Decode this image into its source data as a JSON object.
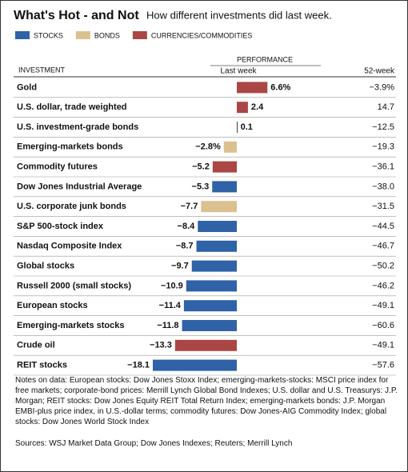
{
  "chart_data": {
    "type": "bar",
    "orientation": "horizontal",
    "title": "What's Hot - and Not",
    "subtitle": "How different investments did last week.",
    "category_header": "INVESTMENT",
    "group_header": "PERFORMANCE",
    "value_header": "Last week",
    "categories": [
      "Gold",
      "U.S. dollar, trade weighted",
      "U.S. investment-grade bonds",
      "Emerging-markets bonds",
      "Commodity futures",
      "Dow Jones Industrial Average",
      "U.S. corporate junk bonds",
      "S&P 500-stock index",
      "Nasdaq Composite Index",
      "Global stocks",
      "Russell 2000 (small stocks)",
      "European stocks",
      "Emerging-markets stocks",
      "Crude oil",
      "REIT stocks"
    ],
    "series": [
      {
        "name": "STOCKS",
        "color": "#2f62a6",
        "values": [
          null,
          null,
          null,
          null,
          null,
          -5.3,
          null,
          -8.4,
          -8.7,
          -9.7,
          -10.9,
          -11.4,
          -11.8,
          null,
          -18.1
        ],
        "value_labels": [
          null,
          null,
          null,
          null,
          null,
          "−5.3",
          null,
          "−8.4",
          "−8.7",
          "−9.7",
          "−10.9",
          "−11.4",
          "−11.8",
          null,
          "−18.1"
        ]
      },
      {
        "name": "BONDS",
        "color": "#dcc190",
        "values": [
          null,
          null,
          0.1,
          -2.8,
          null,
          null,
          -7.7,
          null,
          null,
          null,
          null,
          null,
          null,
          null,
          null
        ],
        "value_labels": [
          null,
          null,
          "0.1",
          "−2.8%",
          null,
          null,
          "−7.7",
          null,
          null,
          null,
          null,
          null,
          null,
          null,
          null
        ]
      },
      {
        "name": "CURRENCIES/COMMODITIES",
        "color": "#ab4646",
        "values": [
          6.6,
          2.4,
          null,
          null,
          -5.2,
          null,
          null,
          null,
          null,
          null,
          null,
          null,
          null,
          -13.3,
          null
        ],
        "value_labels": [
          "6.6%",
          "2.4",
          null,
          null,
          "−5.2",
          null,
          null,
          null,
          null,
          null,
          null,
          null,
          null,
          "−13.3",
          null
        ]
      }
    ],
    "week52": {
      "header": "52-week",
      "values": [
        -3.9,
        14.7,
        -12.5,
        -19.3,
        -36.1,
        -38.0,
        -31.5,
        -44.5,
        -46.7,
        -50.2,
        -46.2,
        -49.1,
        -60.6,
        -49.1,
        -57.6
      ],
      "value_labels": [
        "−3.9%",
        "14.7",
        "−12.5",
        "−19.3",
        "−36.1",
        "−38.0",
        "−31.5",
        "−44.5",
        "−46.7",
        "−50.2",
        "−46.2",
        "−49.1",
        "−60.6",
        "−49.1",
        "−57.6"
      ]
    },
    "notes": "Notes on data: European stocks: Dow Jones Stoxx Index; emerging-markets-stocks: MSCI price index for free markets; corporate-bond prices: Merrill Lynch Global Bond Indexes; U.S. dollar and U.S. Treasurys: J.P. Morgan; REIT stocks: Dow Jones Equity REIT Total Return Index; emerging-markets bonds: J.P. Morgan EMBI-plus price index, in U.S.-dollar terms; commodity futures: Dow Jones-AIG Commodity Index; global stocks: Dow Jones World Stock Index",
    "sources": "Sources: WSJ Market Data Group; Dow Jones Indexes; Reuters; Merrill Lynch"
  }
}
